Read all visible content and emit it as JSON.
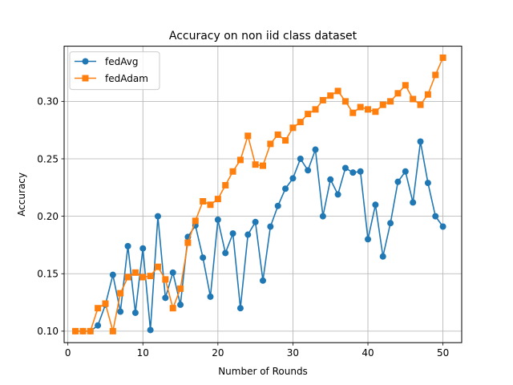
{
  "chart_data": {
    "type": "line",
    "title": "Accuracy on non iid class dataset",
    "xlabel": "Number of Rounds",
    "ylabel": "Accuracy",
    "xlim": [
      -0.5,
      52.5
    ],
    "ylim": [
      0.09,
      0.348
    ],
    "xticks": [
      0,
      10,
      20,
      30,
      40,
      50
    ],
    "xtick_labels": [
      "0",
      "10",
      "20",
      "30",
      "40",
      "50"
    ],
    "yticks": [
      0.1,
      0.15,
      0.2,
      0.25,
      0.3
    ],
    "ytick_labels": [
      "0.10",
      "0.15",
      "0.20",
      "0.25",
      "0.30"
    ],
    "grid": true,
    "legend_position": "top-left",
    "x": [
      1,
      2,
      3,
      4,
      5,
      6,
      7,
      8,
      9,
      10,
      11,
      12,
      13,
      14,
      15,
      16,
      17,
      18,
      19,
      20,
      21,
      22,
      23,
      24,
      25,
      26,
      27,
      28,
      29,
      30,
      31,
      32,
      33,
      34,
      35,
      36,
      37,
      38,
      39,
      40,
      41,
      42,
      43,
      44,
      45,
      46,
      47,
      48,
      49,
      50
    ],
    "series": [
      {
        "name": "fedAvg",
        "color": "#1f77b4",
        "marker": "circle",
        "values": [
          0.1,
          0.1,
          0.1,
          0.105,
          0.123,
          0.149,
          0.117,
          0.174,
          0.116,
          0.172,
          0.101,
          0.2,
          0.129,
          0.151,
          0.123,
          0.182,
          0.192,
          0.164,
          0.13,
          0.197,
          0.168,
          0.185,
          0.12,
          0.184,
          0.195,
          0.144,
          0.191,
          0.209,
          0.224,
          0.233,
          0.25,
          0.24,
          0.258,
          0.2,
          0.232,
          0.219,
          0.242,
          0.238,
          0.239,
          0.18,
          0.21,
          0.165,
          0.194,
          0.23,
          0.239,
          0.212,
          0.265,
          0.229,
          0.2,
          0.191
        ]
      },
      {
        "name": "fedAdam",
        "color": "#ff7f0e",
        "marker": "square",
        "values": [
          0.1,
          0.1,
          0.1,
          0.12,
          0.124,
          0.1,
          0.133,
          0.147,
          0.151,
          0.147,
          0.148,
          0.156,
          0.145,
          0.12,
          0.137,
          0.177,
          0.196,
          0.213,
          0.21,
          0.215,
          0.227,
          0.239,
          0.249,
          0.27,
          0.245,
          0.244,
          0.263,
          0.271,
          0.266,
          0.277,
          0.282,
          0.289,
          0.293,
          0.301,
          0.305,
          0.309,
          0.3,
          0.29,
          0.295,
          0.293,
          0.291,
          0.297,
          0.3,
          0.307,
          0.314,
          0.302,
          0.297,
          0.306,
          0.323,
          0.338
        ]
      }
    ]
  }
}
